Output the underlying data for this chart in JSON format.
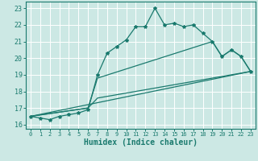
{
  "xlabel": "Humidex (Indice chaleur)",
  "background_color": "#cce8e4",
  "grid_color": "#ffffff",
  "line_color": "#1a7a6e",
  "xlim": [
    -0.5,
    23.5
  ],
  "ylim": [
    15.75,
    23.4
  ],
  "yticks": [
    16,
    17,
    18,
    19,
    20,
    21,
    22,
    23
  ],
  "xticks": [
    0,
    1,
    2,
    3,
    4,
    5,
    6,
    7,
    8,
    9,
    10,
    11,
    12,
    13,
    14,
    15,
    16,
    17,
    18,
    19,
    20,
    21,
    22,
    23
  ],
  "series1_x": [
    0,
    1,
    2,
    3,
    4,
    5,
    6,
    7,
    8,
    9,
    10,
    11,
    12,
    13,
    14,
    15,
    16,
    17,
    18,
    19,
    20,
    21,
    22,
    23
  ],
  "series1_y": [
    16.5,
    16.4,
    16.3,
    16.5,
    16.6,
    16.7,
    16.9,
    19.0,
    20.3,
    20.7,
    21.1,
    21.9,
    21.9,
    23.0,
    22.0,
    22.1,
    21.9,
    22.0,
    21.5,
    21.0,
    20.1,
    20.5,
    20.1,
    19.2
  ],
  "series2_x": [
    0,
    23
  ],
  "series2_y": [
    16.5,
    19.2
  ],
  "series3_x": [
    0,
    6,
    7,
    23
  ],
  "series3_y": [
    16.5,
    17.0,
    17.6,
    19.2
  ],
  "series4_x": [
    0,
    6,
    7,
    19,
    20,
    21,
    22,
    23
  ],
  "series4_y": [
    16.5,
    17.0,
    18.8,
    21.0,
    20.1,
    20.5,
    20.1,
    19.2
  ],
  "markersize": 3,
  "linewidth": 0.9
}
